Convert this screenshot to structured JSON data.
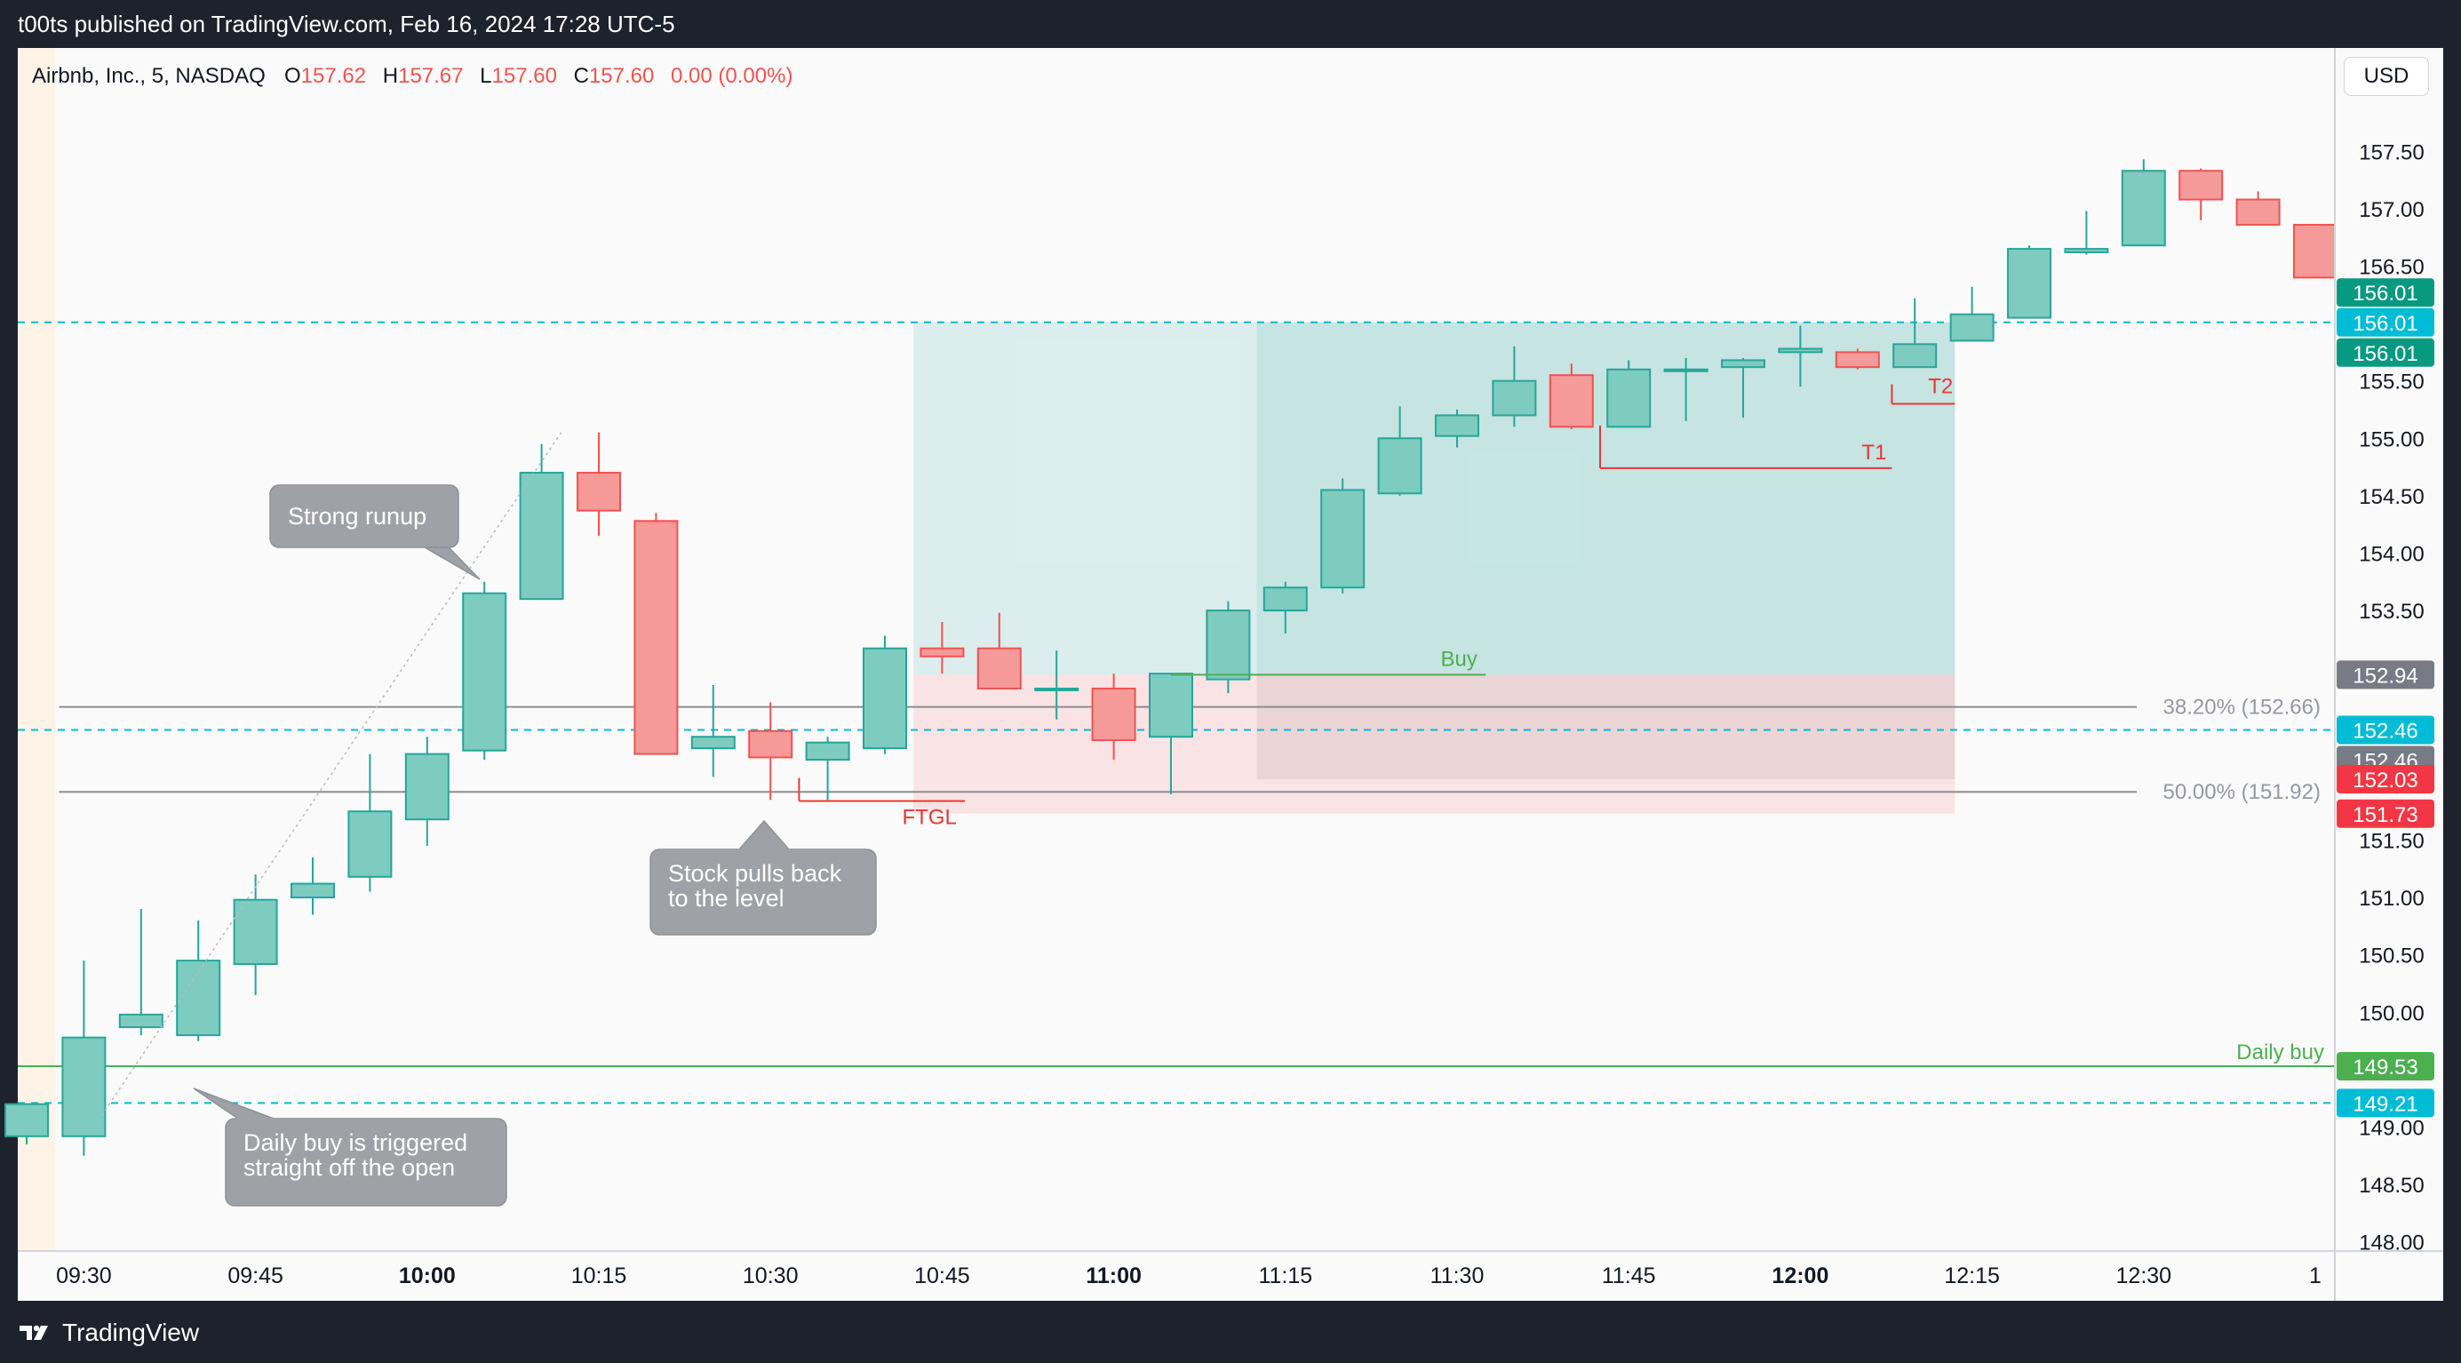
{
  "header": {
    "published_text": "t00ts published on TradingView.com, Feb 16, 2024 17:28 UTC-5"
  },
  "footer": {
    "brand": "TradingView"
  },
  "legend": {
    "symbol": "Airbnb, Inc., 5, NASDAQ",
    "o_label": "O",
    "o": "157.62",
    "h_label": "H",
    "h": "157.67",
    "l_label": "L",
    "l": "157.60",
    "c_label": "C",
    "c": "157.60",
    "change": "0.00 (0.00%)"
  },
  "currency": "USD",
  "colors": {
    "up": "#7ecbbf",
    "up_border": "#26a69a",
    "down": "#f59a99",
    "down_border": "#ef5350",
    "cyan_line": "#00bcd4",
    "daily_buy_green": "#4caf50",
    "buy_green": "#4caf50",
    "target_red": "#e53935",
    "callout_gray": "#9ea1a6"
  },
  "chart_data": {
    "type": "candlestick",
    "interval": "5",
    "x": [
      "09:25",
      "09:30",
      "09:35",
      "09:40",
      "09:45",
      "09:50",
      "09:55",
      "10:00",
      "10:05",
      "10:10",
      "10:15",
      "10:20",
      "10:25",
      "10:30",
      "10:35",
      "10:40",
      "10:45",
      "10:50",
      "10:55",
      "11:00",
      "11:05",
      "11:10",
      "11:15",
      "11:20",
      "11:25",
      "11:30",
      "11:35",
      "11:40",
      "11:45",
      "11:50",
      "11:55",
      "12:00",
      "12:05",
      "12:10",
      "12:15",
      "12:20",
      "12:25",
      "12:30",
      "12:35",
      "12:40",
      "12:45"
    ],
    "candles": [
      {
        "o": 148.92,
        "h": 149.15,
        "l": 148.85,
        "c": 149.2
      },
      {
        "o": 148.92,
        "h": 150.45,
        "l": 148.75,
        "c": 149.78
      },
      {
        "o": 149.87,
        "h": 150.9,
        "l": 149.8,
        "c": 149.98
      },
      {
        "o": 149.8,
        "h": 150.8,
        "l": 149.75,
        "c": 150.45
      },
      {
        "o": 150.42,
        "h": 151.2,
        "l": 150.15,
        "c": 150.98
      },
      {
        "o": 151.0,
        "h": 151.35,
        "l": 150.85,
        "c": 151.12
      },
      {
        "o": 151.18,
        "h": 152.25,
        "l": 151.05,
        "c": 151.75
      },
      {
        "o": 151.68,
        "h": 152.4,
        "l": 151.45,
        "c": 152.25
      },
      {
        "o": 152.28,
        "h": 153.75,
        "l": 152.2,
        "c": 153.65
      },
      {
        "o": 153.6,
        "h": 154.95,
        "l": 153.6,
        "c": 154.7
      },
      {
        "o": 154.7,
        "h": 155.05,
        "l": 154.15,
        "c": 154.37
      },
      {
        "o": 154.28,
        "h": 154.35,
        "l": 152.25,
        "c": 152.25
      },
      {
        "o": 152.3,
        "h": 152.85,
        "l": 152.05,
        "c": 152.4
      },
      {
        "o": 152.45,
        "h": 152.7,
        "l": 151.85,
        "c": 152.22
      },
      {
        "o": 152.2,
        "h": 152.4,
        "l": 151.85,
        "c": 152.35
      },
      {
        "o": 152.3,
        "h": 153.28,
        "l": 152.25,
        "c": 153.17
      },
      {
        "o": 153.17,
        "h": 153.4,
        "l": 152.95,
        "c": 153.1
      },
      {
        "o": 153.17,
        "h": 153.48,
        "l": 152.9,
        "c": 152.82
      },
      {
        "o": 152.82,
        "h": 153.15,
        "l": 152.55,
        "c": 152.82
      },
      {
        "o": 152.82,
        "h": 152.95,
        "l": 152.2,
        "c": 152.37
      },
      {
        "o": 152.4,
        "h": 152.95,
        "l": 151.9,
        "c": 152.95
      },
      {
        "o": 152.9,
        "h": 153.58,
        "l": 152.78,
        "c": 153.5
      },
      {
        "o": 153.5,
        "h": 153.75,
        "l": 153.3,
        "c": 153.7
      },
      {
        "o": 153.7,
        "h": 154.65,
        "l": 153.65,
        "c": 154.55
      },
      {
        "o": 154.52,
        "h": 155.28,
        "l": 154.5,
        "c": 155.0
      },
      {
        "o": 155.02,
        "h": 155.25,
        "l": 154.92,
        "c": 155.2
      },
      {
        "o": 155.2,
        "h": 155.8,
        "l": 155.1,
        "c": 155.5
      },
      {
        "o": 155.55,
        "h": 155.65,
        "l": 155.08,
        "c": 155.1
      },
      {
        "o": 155.1,
        "h": 155.68,
        "l": 155.1,
        "c": 155.6
      },
      {
        "o": 155.6,
        "h": 155.7,
        "l": 155.15,
        "c": 155.6
      },
      {
        "o": 155.62,
        "h": 155.7,
        "l": 155.18,
        "c": 155.68
      },
      {
        "o": 155.75,
        "h": 155.98,
        "l": 155.45,
        "c": 155.78
      },
      {
        "o": 155.75,
        "h": 155.78,
        "l": 155.6,
        "c": 155.62
      },
      {
        "o": 155.62,
        "h": 156.22,
        "l": 155.62,
        "c": 155.82
      },
      {
        "o": 155.85,
        "h": 156.32,
        "l": 155.85,
        "c": 156.08
      },
      {
        "o": 156.05,
        "h": 156.68,
        "l": 156.05,
        "c": 156.65
      },
      {
        "o": 156.62,
        "h": 156.98,
        "l": 156.6,
        "c": 156.65
      },
      {
        "o": 156.68,
        "h": 157.43,
        "l": 156.68,
        "c": 157.33
      },
      {
        "o": 157.33,
        "h": 157.35,
        "l": 156.9,
        "c": 157.08
      },
      {
        "o": 157.08,
        "h": 157.15,
        "l": 156.86,
        "c": 156.86
      },
      {
        "o": 156.86,
        "h": 156.86,
        "l": 156.4,
        "c": 156.4
      }
    ],
    "x_ticks": [
      {
        "i": 1,
        "label": "09:30",
        "bold": false
      },
      {
        "i": 4,
        "label": "09:45",
        "bold": false
      },
      {
        "i": 7,
        "label": "10:00",
        "bold": true
      },
      {
        "i": 10,
        "label": "10:15",
        "bold": false
      },
      {
        "i": 13,
        "label": "10:30",
        "bold": false
      },
      {
        "i": 16,
        "label": "10:45",
        "bold": false
      },
      {
        "i": 19,
        "label": "11:00",
        "bold": true
      },
      {
        "i": 22,
        "label": "11:15",
        "bold": false
      },
      {
        "i": 25,
        "label": "11:30",
        "bold": false
      },
      {
        "i": 28,
        "label": "11:45",
        "bold": false
      },
      {
        "i": 31,
        "label": "12:00",
        "bold": true
      },
      {
        "i": 34,
        "label": "12:15",
        "bold": false
      },
      {
        "i": 37,
        "label": "12:30",
        "bold": false
      },
      {
        "i": 40,
        "label": "1",
        "bold": false
      }
    ],
    "y_ticks": [
      "157.50",
      "157.00",
      "156.50",
      "156.00",
      "155.50",
      "155.00",
      "154.50",
      "154.00",
      "153.50",
      "153.00",
      "152.50",
      "152.00",
      "151.50",
      "151.00",
      "150.50",
      "150.00",
      "149.50",
      "149.00",
      "148.50",
      "148.00"
    ],
    "ylim": [
      147.92,
      158.4
    ],
    "premarket_end": "09:30",
    "levels": [
      {
        "price": 156.01,
        "style": "dashed",
        "color": "#00bcd4"
      },
      {
        "price": 152.46,
        "style": "dashed",
        "color": "#00bcd4"
      },
      {
        "price": 149.21,
        "style": "dashed",
        "color": "#00bcd4"
      },
      {
        "price": 149.53,
        "style": "solid",
        "color": "#4caf50",
        "label": "Daily buy"
      }
    ],
    "fib_levels": [
      {
        "price": 152.66,
        "label": "38.20% (152.66)",
        "from_i": 1
      },
      {
        "price": 151.92,
        "label": "50.00% (151.92)",
        "from_i": 1
      }
    ],
    "annotations": [
      {
        "id": "buy",
        "text": "Buy",
        "price": 152.94,
        "from_i": 20,
        "to_i": 25.5
      },
      {
        "id": "t1",
        "text": "T1",
        "price": 154.74,
        "from_i": 27.5,
        "to_i": 32.6
      },
      {
        "id": "t2",
        "text": "T2",
        "price": 155.3,
        "from_i": 32.6,
        "to_i": 33.7
      },
      {
        "id": "ftgl",
        "text": "FTGL",
        "price": 151.84,
        "from_i": 13.5,
        "to_i": 16.4
      }
    ],
    "positions": [
      {
        "from_i": 15.5,
        "to_i": 33.7,
        "entry": 152.94,
        "target": 156.01,
        "stop": 151.73
      },
      {
        "from_i": 21.5,
        "to_i": 33.7,
        "entry": 152.94,
        "target": 156.01,
        "stop": 152.03
      }
    ],
    "price_labels": [
      {
        "value": "156.01",
        "price": 156.27,
        "color": "#089981"
      },
      {
        "value": "156.01",
        "price": 156.01,
        "color": "#089981",
        "offset": 1
      },
      {
        "value": "156.01",
        "price": 156.01,
        "color": "#00bcd4"
      },
      {
        "value": "152.94",
        "price": 152.94,
        "color": "#787b86"
      },
      {
        "value": "152.46",
        "price": 152.46,
        "color": "#00bcd4"
      },
      {
        "value": "152.46",
        "price": 152.46,
        "color": "#787b86",
        "offset": 1
      },
      {
        "value": "152.03",
        "price": 152.03,
        "color": "#f23645"
      },
      {
        "value": "151.73",
        "price": 151.73,
        "color": "#f23645"
      },
      {
        "value": "149.53",
        "price": 149.53,
        "color": "#4caf50"
      },
      {
        "value": "149.21",
        "price": 149.21,
        "color": "#00bcd4"
      }
    ],
    "callouts": [
      {
        "lines": [
          "Strong runup"
        ]
      },
      {
        "lines": [
          "Stock pulls back",
          "to the level"
        ]
      },
      {
        "lines": [
          "Daily buy is triggered",
          "straight off the open"
        ]
      }
    ]
  }
}
